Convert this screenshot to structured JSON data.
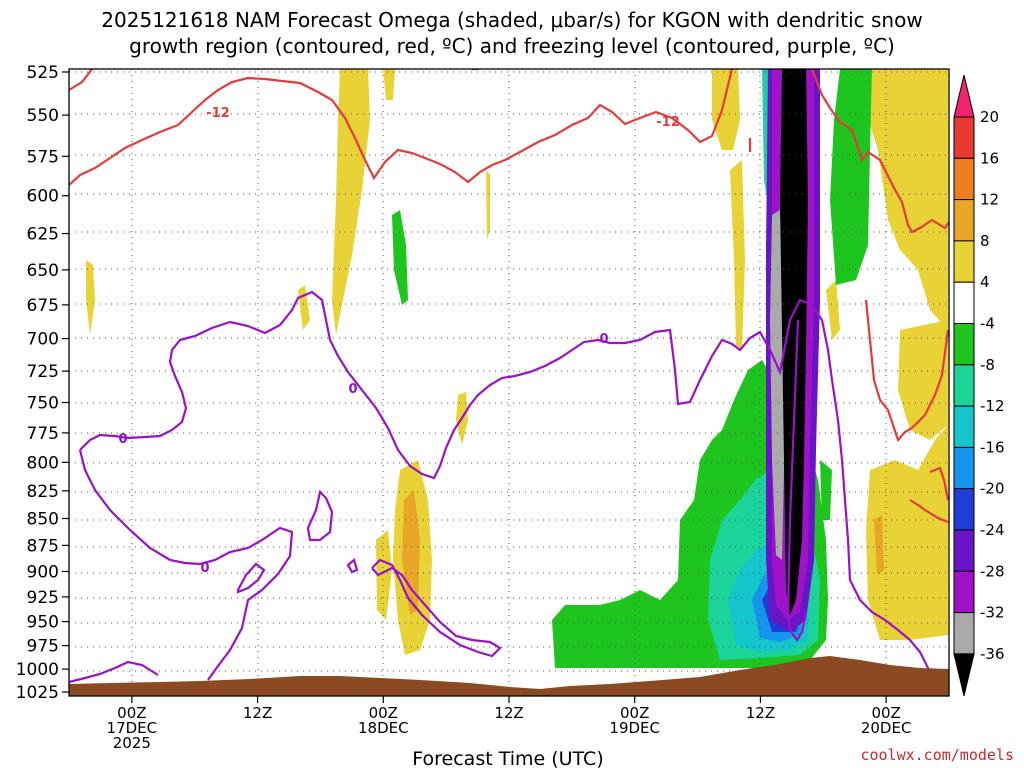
{
  "chart_data": {
    "type": "time-height cross section",
    "title_line1": "2025121618 NAM Forecast Omega (shaded, μbar/s) for KGON with dendritic snow",
    "title_line2": "growth region (contoured, red, ºC) and freezing level (contoured, purple, ºC)",
    "xlabel": "Forecast Time (UTC)",
    "credit": "coolwx.com/models",
    "y_axis": {
      "unit": "hPa",
      "range": [
        525,
        1025
      ],
      "ticks": [
        "525",
        "550",
        "575",
        "600",
        "625",
        "650",
        "675",
        "700",
        "725",
        "750",
        "775",
        "800",
        "825",
        "850",
        "875",
        "900",
        "925",
        "950",
        "975",
        "1000",
        "1025"
      ]
    },
    "x_axis": {
      "range_hours": [
        0,
        84
      ],
      "ticks": [
        {
          "hour": 6,
          "line1": "00Z",
          "line2": "17DEC",
          "line3": "2025"
        },
        {
          "hour": 18,
          "line1": "12Z",
          "line2": "",
          "line3": ""
        },
        {
          "hour": 30,
          "line1": "00Z",
          "line2": "18DEC",
          "line3": ""
        },
        {
          "hour": 42,
          "line1": "12Z",
          "line2": "",
          "line3": ""
        },
        {
          "hour": 54,
          "line1": "00Z",
          "line2": "19DEC",
          "line3": ""
        },
        {
          "hour": 66,
          "line1": "12Z",
          "line2": "",
          "line3": ""
        },
        {
          "hour": 78,
          "line1": "00Z",
          "line2": "20DEC",
          "line3": ""
        }
      ]
    },
    "colorbar": {
      "labels": [
        "20",
        "16",
        "12",
        "8",
        "4",
        "-4",
        "-8",
        "-12",
        "-16",
        "-20",
        "-24",
        "-28",
        "-32",
        "-36"
      ],
      "colors": [
        "#f0246e",
        "#e83a32",
        "#ee7d22",
        "#e8a628",
        "#e8d236",
        "#ffffff",
        "#1ec51e",
        "#1cd39a",
        "#14c6cc",
        "#1496ee",
        "#1e3ed6",
        "#6a14c8",
        "#a012c8",
        "#aaaaaa",
        "#000000"
      ]
    },
    "contour_labels": {
      "dgz": [
        "-12",
        "-12"
      ],
      "freezing": [
        "0",
        "0",
        "0",
        "0"
      ]
    },
    "omega_regions": [
      {
        "level": "-4",
        "center_hour": 73,
        "p_top": 525,
        "p_bottom": 925
      },
      {
        "level": "-8",
        "center_hour": 62,
        "p_top": 800,
        "p_bottom": 990
      },
      {
        "level": "-36",
        "center_hour": 69.6,
        "p_top": 525,
        "p_bottom": 960
      },
      {
        "level": "4",
        "center_hour": 30,
        "p_top": 800,
        "p_bottom": 990
      },
      {
        "level": "8",
        "center_hour": 32.5,
        "p_top": 825,
        "p_bottom": 950
      }
    ]
  },
  "colors": {
    "dgz_contour": "#e83a3a",
    "freezing_contour": "#9a12c8",
    "terrain": "#8b4a22",
    "credit": "#c8282e"
  }
}
